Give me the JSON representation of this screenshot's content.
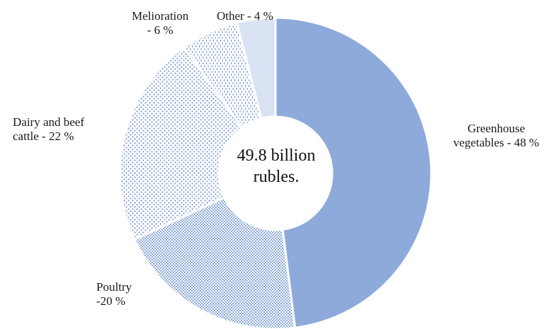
{
  "chart_data": {
    "type": "pie",
    "donut": true,
    "center_text": [
      "49.8 billion",
      "rubles."
    ],
    "slices": [
      {
        "name": "Greenhouse vegetables",
        "label_lines": [
          "Greenhouse",
          "vegetables - 48 %"
        ],
        "value": 48,
        "fill": "solid",
        "color": "#8eaadb"
      },
      {
        "name": "Poultry",
        "label_lines": [
          "Poultry",
          "-20 %"
        ],
        "value": 20,
        "fill": "fine-grid",
        "color": "#8eaadb"
      },
      {
        "name": "Dairy and beef cattle",
        "label_lines": [
          "Dairy and beef",
          "cattle - 22 %"
        ],
        "value": 22,
        "fill": "dots",
        "color": "#8eaadb"
      },
      {
        "name": "Melioration",
        "label_lines": [
          "Melioration",
          "- 6 %"
        ],
        "value": 6,
        "fill": "dashes",
        "color": "#8eaadb"
      },
      {
        "name": "Other",
        "label_lines": [
          "Other - 4 %"
        ],
        "value": 4,
        "fill": "solid-light",
        "color": "#dae3f3"
      }
    ]
  }
}
